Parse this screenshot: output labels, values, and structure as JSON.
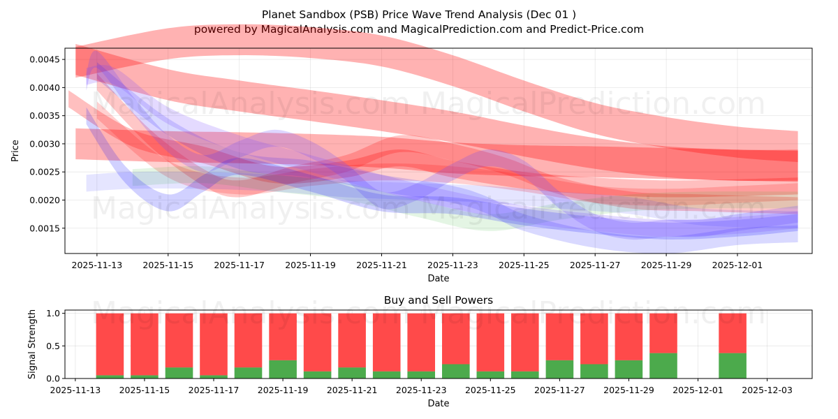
{
  "chart_data": [
    {
      "type": "area",
      "title_line1": "Planet Sandbox (PSB) Price Wave Trend Analysis (Dec 01 )",
      "title_line2": "powered by MagicalAnalysis.com and MagicalPrediction.com and Predict-Price.com",
      "xlabel": "Date",
      "ylabel": "Price",
      "xlim": [
        -0.9,
        20.1
      ],
      "ylim": [
        0.00105,
        0.0047
      ],
      "x_dates": [
        "2025-11-13",
        "2025-11-14",
        "2025-11-15",
        "2025-11-16",
        "2025-11-17",
        "2025-11-18",
        "2025-11-19",
        "2025-11-20",
        "2025-11-21",
        "2025-11-22",
        "2025-11-23",
        "2025-11-24",
        "2025-11-25",
        "2025-11-26",
        "2025-11-27",
        "2025-11-28",
        "2025-11-29",
        "2025-11-30",
        "2025-12-01",
        "2025-12-02"
      ],
      "x_ticks": [
        {
          "x": 0,
          "label": "2025-11-13"
        },
        {
          "x": 2,
          "label": "2025-11-15"
        },
        {
          "x": 4,
          "label": "2025-11-17"
        },
        {
          "x": 6,
          "label": "2025-11-19"
        },
        {
          "x": 8,
          "label": "2025-11-21"
        },
        {
          "x": 10,
          "label": "2025-11-23"
        },
        {
          "x": 12,
          "label": "2025-11-25"
        },
        {
          "x": 14,
          "label": "2025-11-27"
        },
        {
          "x": 16,
          "label": "2025-11-29"
        },
        {
          "x": 18,
          "label": "2025-12-01"
        }
      ],
      "y_ticks": [
        {
          "v": 0.0015,
          "label": "0.0015"
        },
        {
          "v": 0.002,
          "label": "0.0020"
        },
        {
          "v": 0.0025,
          "label": "0.0025"
        },
        {
          "v": 0.003,
          "label": "0.0030"
        },
        {
          "v": 0.0035,
          "label": "0.0035"
        },
        {
          "v": 0.004,
          "label": "0.0040"
        },
        {
          "v": 0.0045,
          "label": "0.0045"
        }
      ],
      "series": [
        {
          "name": "red-wave-1",
          "color": "#ff0000",
          "opacity": 0.3,
          "width": 0.00055,
          "x": [
            -0.6,
            2,
            4,
            6,
            8,
            10,
            12,
            14,
            16,
            18,
            19.7
          ],
          "values": [
            0.00445,
            0.00478,
            0.00485,
            0.0048,
            0.00465,
            0.0043,
            0.00385,
            0.00345,
            0.0032,
            0.00303,
            0.00295
          ]
        },
        {
          "name": "red-wave-2",
          "color": "#ff0000",
          "opacity": 0.3,
          "width": 0.00055,
          "x": [
            -0.6,
            2,
            4,
            6,
            8,
            10,
            12,
            14,
            16,
            18,
            19.7
          ],
          "values": [
            0.0045,
            0.00405,
            0.00385,
            0.00368,
            0.0035,
            0.0033,
            0.00305,
            0.00283,
            0.00268,
            0.00262,
            0.00262
          ]
        },
        {
          "name": "red-wave-3",
          "color": "#ff0000",
          "opacity": 0.3,
          "width": 0.00055,
          "x": [
            -0.6,
            2,
            4,
            6,
            8,
            10,
            12,
            14,
            16,
            18,
            19.7
          ],
          "values": [
            0.003,
            0.00295,
            0.00293,
            0.0029,
            0.00285,
            0.00275,
            0.0027,
            0.00268,
            0.00265,
            0.00262,
            0.0026
          ]
        },
        {
          "name": "red-wave-4",
          "color": "#ff0000",
          "opacity": 0.25,
          "width": 0.0003,
          "x": [
            -0.8,
            1,
            3,
            5,
            7,
            8.5,
            10,
            12,
            14,
            16,
            18,
            19.7
          ],
          "values": [
            0.0038,
            0.0031,
            0.0028,
            0.00245,
            0.00255,
            0.00275,
            0.00255,
            0.00235,
            0.00225,
            0.0022,
            0.00222,
            0.00225
          ]
        },
        {
          "name": "red-wave-5",
          "color": "#ff0000",
          "opacity": 0.22,
          "width": 0.0003,
          "x": [
            0,
            1.5,
            3,
            4,
            5.5,
            7,
            8.5,
            10,
            11.5,
            13,
            15,
            17,
            19.7
          ],
          "values": [
            0.0041,
            0.0031,
            0.0024,
            0.0022,
            0.00245,
            0.00265,
            0.003,
            0.00285,
            0.0026,
            0.00225,
            0.002,
            0.00195,
            0.0019
          ]
        },
        {
          "name": "red-wave-6",
          "color": "#ff0000",
          "opacity": 0.18,
          "width": 0.0003,
          "x": [
            0,
            2,
            4,
            6,
            8,
            10,
            12,
            14,
            16,
            18,
            19.7
          ],
          "values": [
            0.0036,
            0.00255,
            0.00225,
            0.0024,
            0.0025,
            0.00245,
            0.0023,
            0.0021,
            0.00205,
            0.0021,
            0.00215
          ]
        },
        {
          "name": "green-wave-1",
          "color": "#22aa22",
          "opacity": 0.12,
          "width": 0.0003,
          "x": [
            1,
            3,
            5,
            7,
            9,
            11,
            13,
            15,
            17,
            19.7
          ],
          "values": [
            0.0024,
            0.00245,
            0.0023,
            0.00215,
            0.00185,
            0.0016,
            0.0018,
            0.00195,
            0.002,
            0.002
          ]
        },
        {
          "name": "blue-wave-1",
          "color": "#0000ff",
          "opacity": 0.18,
          "width": 0.0003,
          "x": [
            -0.3,
            0.8,
            2,
            3,
            4,
            6,
            8,
            10,
            12,
            14,
            16,
            18,
            19.7
          ],
          "values": [
            0.0035,
            0.00245,
            0.00195,
            0.0023,
            0.0026,
            0.0023,
            0.00195,
            0.0019,
            0.0017,
            0.00155,
            0.00145,
            0.0015,
            0.0016
          ]
        },
        {
          "name": "blue-wave-2",
          "color": "#6644ff",
          "opacity": 0.22,
          "width": 0.0003,
          "x": [
            -0.3,
            0,
            1,
            2,
            3,
            4,
            5,
            6,
            7,
            8,
            9,
            10,
            11,
            12,
            13,
            14,
            15,
            16,
            17,
            18,
            19.7
          ],
          "values": [
            0.0041,
            0.0045,
            0.0037,
            0.003,
            0.00265,
            0.0029,
            0.0031,
            0.0029,
            0.0025,
            0.002,
            0.00215,
            0.0025,
            0.00275,
            0.00255,
            0.002,
            0.0016,
            0.00145,
            0.0015,
            0.0015,
            0.0016,
            0.00175
          ]
        },
        {
          "name": "blue-wave-3",
          "color": "#0000ff",
          "opacity": 0.15,
          "width": 0.0003,
          "x": [
            0,
            2,
            4,
            6,
            8,
            10,
            11,
            12,
            14,
            16,
            18,
            19.7
          ],
          "values": [
            0.0043,
            0.0033,
            0.0027,
            0.00255,
            0.0023,
            0.0021,
            0.0019,
            0.0016,
            0.0013,
            0.0012,
            0.00135,
            0.0014
          ]
        },
        {
          "name": "blue-wave-4",
          "color": "#0000ff",
          "opacity": 0.1,
          "width": 0.0003,
          "x": [
            -0.3,
            1,
            3,
            5,
            7,
            9,
            11,
            13,
            15,
            17,
            19.7
          ],
          "values": [
            0.0023,
            0.00235,
            0.00235,
            0.0023,
            0.0022,
            0.00215,
            0.0021,
            0.002,
            0.0019,
            0.0017,
            0.00165
          ]
        },
        {
          "name": "purple-wave-1",
          "color": "#7744ff",
          "opacity": 0.2,
          "width": 0.0003,
          "x": [
            -0.3,
            0.5,
            2,
            4,
            6,
            8,
            10,
            12,
            14,
            16,
            18,
            19.7
          ],
          "values": [
            0.0042,
            0.0042,
            0.0035,
            0.003,
            0.00265,
            0.0023,
            0.002,
            0.00175,
            0.0016,
            0.0015,
            0.00155,
            0.00165
          ]
        }
      ],
      "watermarks": [
        "MagicalAnalysis.com",
        "MagicalPrediction.com",
        "MagicalAnalysis.com",
        "MagicalPrediction.com"
      ]
    },
    {
      "type": "bar",
      "title": "Buy and Sell Powers",
      "xlabel": "Date",
      "ylabel": "Signal Strength",
      "ylim": [
        0,
        1.05
      ],
      "xlim": [
        -1.3,
        20.3
      ],
      "categories": [
        "2025-11-14",
        "2025-11-15",
        "2025-11-16",
        "2025-11-17",
        "2025-11-18",
        "2025-11-19",
        "2025-11-20",
        "2025-11-21",
        "2025-11-22",
        "2025-11-23",
        "2025-11-24",
        "2025-11-25",
        "2025-11-26",
        "2025-11-27",
        "2025-11-28",
        "2025-11-29",
        "2025-11-30",
        "2025-12-01",
        "2025-12-02"
      ],
      "series": [
        {
          "name": "Buy",
          "color": "#4caa4c",
          "values": [
            0.05,
            0.05,
            0.17,
            0.05,
            0.17,
            0.28,
            0.11,
            0.17,
            0.11,
            0.11,
            0.22,
            0.11,
            0.11,
            0.28,
            0.22,
            0.28,
            0.39,
            0,
            0.39
          ]
        },
        {
          "name": "Sell",
          "color": "#ff4a4a",
          "values": [
            0.95,
            0.95,
            0.83,
            0.95,
            0.83,
            0.72,
            0.89,
            0.83,
            0.89,
            0.89,
            0.78,
            0.89,
            0.89,
            0.72,
            0.78,
            0.72,
            0.61,
            0,
            0.61
          ]
        }
      ],
      "x_ticks": [
        {
          "x": -1,
          "label": "2025-11-13"
        },
        {
          "x": 1,
          "label": "2025-11-15"
        },
        {
          "x": 3,
          "label": "2025-11-17"
        },
        {
          "x": 5,
          "label": "2025-11-19"
        },
        {
          "x": 7,
          "label": "2025-11-21"
        },
        {
          "x": 9,
          "label": "2025-11-23"
        },
        {
          "x": 11,
          "label": "2025-11-25"
        },
        {
          "x": 13,
          "label": "2025-11-27"
        },
        {
          "x": 15,
          "label": "2025-11-29"
        },
        {
          "x": 17,
          "label": "2025-12-01"
        },
        {
          "x": 19,
          "label": "2025-12-03"
        }
      ],
      "y_ticks": [
        {
          "v": 0.0,
          "label": "0.0"
        },
        {
          "v": 0.5,
          "label": "0.5"
        },
        {
          "v": 1.0,
          "label": "1.0"
        }
      ],
      "watermarks": [
        "MagicalAnalysis.com",
        "MagicalPrediction.com"
      ]
    }
  ]
}
